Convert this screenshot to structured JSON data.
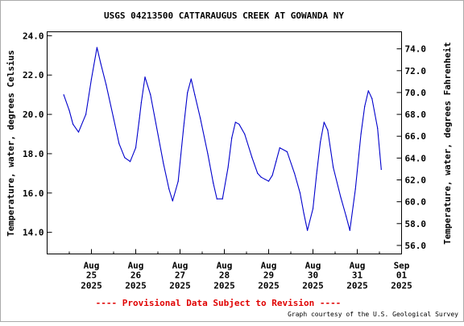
{
  "chart_data": {
    "type": "line",
    "title": "USGS 04213500 CATTARAUGUS CREEK AT GOWANDA NY",
    "ylabel": "Temperature, water, degrees Celsius",
    "y2label": "Temperature, water, degrees Fahrenheit",
    "xlabel": "",
    "ylim": [
      12.9,
      24.2
    ],
    "y_ticks": [
      "14.0",
      "16.0",
      "18.0",
      "20.0",
      "22.0",
      "24.0"
    ],
    "y2_ticks": [
      "56.0",
      "58.0",
      "60.0",
      "62.0",
      "64.0",
      "66.0",
      "68.0",
      "70.0",
      "72.0",
      "74.0"
    ],
    "x_ticks": [
      {
        "month": "Aug",
        "day": "25",
        "year": "2025"
      },
      {
        "month": "Aug",
        "day": "26",
        "year": "2025"
      },
      {
        "month": "Aug",
        "day": "27",
        "year": "2025"
      },
      {
        "month": "Aug",
        "day": "28",
        "year": "2025"
      },
      {
        "month": "Aug",
        "day": "29",
        "year": "2025"
      },
      {
        "month": "Aug",
        "day": "30",
        "year": "2025"
      },
      {
        "month": "Aug",
        "day": "31",
        "year": "2025"
      },
      {
        "month": "Sep",
        "day": "01",
        "year": "2025"
      }
    ],
    "grid": false,
    "line_color": "#0000cc",
    "series": [
      {
        "x": [
          "2025-08-24T21:00",
          "2025-08-25T00:00",
          "2025-08-25T02:00",
          "2025-08-25T05:00",
          "2025-08-25T09:00",
          "2025-08-25T12:00",
          "2025-08-25T15:00",
          "2025-08-25T17:00",
          "2025-08-25T20:00",
          "2025-08-26T00:00",
          "2025-08-26T03:00",
          "2025-08-26T06:00",
          "2025-08-26T09:00",
          "2025-08-26T12:00",
          "2025-08-26T14:00",
          "2025-08-26T15:00",
          "2025-08-26T17:00",
          "2025-08-26T20:00",
          "2025-08-27T00:00",
          "2025-08-27T03:00",
          "2025-08-27T06:00",
          "2025-08-27T08:00",
          "2025-08-27T11:00",
          "2025-08-27T14:00",
          "2025-08-27T16:00",
          "2025-08-27T18:00",
          "2025-08-27T20:00",
          "2025-08-27T23:00",
          "2025-08-28T03:00",
          "2025-08-28T06:00",
          "2025-08-28T08:00",
          "2025-08-28T11:00",
          "2025-08-28T14:00",
          "2025-08-28T16:00",
          "2025-08-28T18:00",
          "2025-08-28T20:00",
          "2025-08-28T23:00",
          "2025-08-29T03:00",
          "2025-08-29T06:00",
          "2025-08-29T08:00",
          "2025-08-29T10:00",
          "2025-08-29T12:00",
          "2025-08-29T14:00",
          "2025-08-29T16:00",
          "2025-08-29T18:00",
          "2025-08-29T22:00",
          "2025-08-30T02:00",
          "2025-08-30T05:00",
          "2025-08-30T07:00",
          "2025-08-30T09:00",
          "2025-08-30T12:00",
          "2025-08-30T14:00",
          "2025-08-30T16:00",
          "2025-08-30T18:00",
          "2025-08-30T20:00",
          "2025-08-30T23:00",
          "2025-08-31T03:00",
          "2025-08-31T06:00",
          "2025-08-31T08:00",
          "2025-08-31T11:00",
          "2025-08-31T14:00",
          "2025-08-31T16:00",
          "2025-08-31T18:00",
          "2025-08-31T20:00",
          "2025-08-31T23:00",
          "2025-09-01T01:00"
        ],
        "y": [
          21.0,
          20.2,
          19.5,
          19.1,
          20.0,
          21.8,
          23.4,
          22.6,
          21.5,
          19.8,
          18.5,
          17.8,
          17.6,
          18.3,
          19.8,
          20.6,
          21.9,
          21.0,
          19.0,
          17.5,
          16.2,
          15.6,
          16.6,
          19.4,
          21.1,
          21.8,
          21.0,
          19.8,
          18.0,
          16.5,
          15.7,
          15.7,
          17.3,
          18.8,
          19.6,
          19.5,
          19.0,
          17.8,
          17.0,
          16.8,
          16.7,
          16.6,
          16.9,
          17.6,
          18.3,
          18.1,
          17.0,
          16.0,
          15.0,
          14.1,
          15.2,
          17.0,
          18.6,
          19.6,
          19.2,
          17.3,
          15.8,
          14.8,
          14.1,
          16.2,
          19.0,
          20.4,
          21.2,
          20.8,
          19.3,
          17.2
        ]
      }
    ]
  },
  "footer": {
    "notice": "---- Provisional Data Subject to Revision ----",
    "credit": "Graph courtesy of the U.S. Geological Survey"
  }
}
